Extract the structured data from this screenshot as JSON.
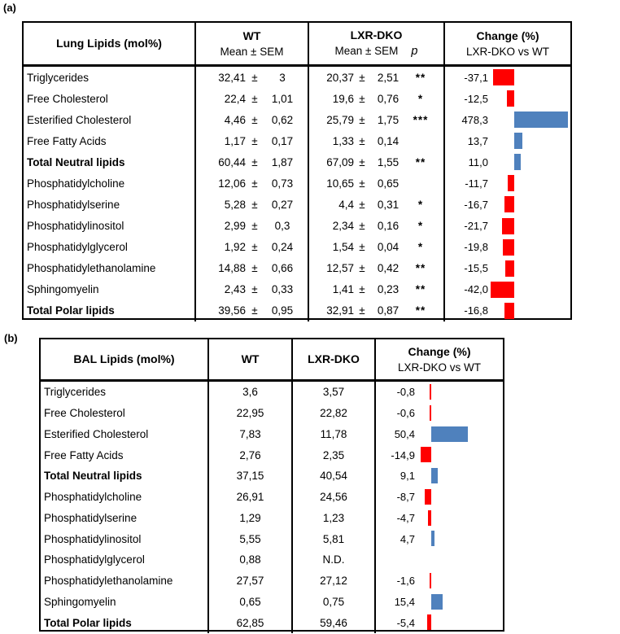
{
  "colors": {
    "negative_bar": "#ff0000",
    "positive_bar": "#4f81bd",
    "border": "#000000"
  },
  "panel_a": {
    "label": "(a)",
    "header": {
      "col1": "Lung Lipids (mol%)",
      "wt_title": "WT",
      "wt_sub": "Mean ± SEM",
      "dko_title": "LXR-DKO",
      "dko_sub": "Mean ± SEM",
      "p_label": "p",
      "change_title": "Change (%)",
      "change_sub": "LXR-DKO vs WT"
    },
    "rows": [
      {
        "lipid": "Triglycerides",
        "bold": false,
        "wt_mean": "32,41",
        "wt_sem": "3",
        "dko_mean": "20,37",
        "dko_sem": "2,51",
        "p": "**",
        "change_label": "-37,1",
        "change": -37.1
      },
      {
        "lipid": "Free Cholesterol",
        "bold": false,
        "wt_mean": "22,4",
        "wt_sem": "1,01",
        "dko_mean": "19,6",
        "dko_sem": "0,76",
        "p": "*",
        "change_label": "-12,5",
        "change": -12.5
      },
      {
        "lipid": "Esterified Cholesterol",
        "bold": false,
        "wt_mean": "4,46",
        "wt_sem": "0,62",
        "dko_mean": "25,79",
        "dko_sem": "1,75",
        "p": "***",
        "change_label": "478,3",
        "change": 478.3
      },
      {
        "lipid": "Free  Fatty Acids",
        "bold": false,
        "wt_mean": "1,17",
        "wt_sem": "0,17",
        "dko_mean": "1,33",
        "dko_sem": "0,14",
        "p": "",
        "change_label": "13,7",
        "change": 13.7
      },
      {
        "lipid": "Total Neutral lipids",
        "bold": true,
        "wt_mean": "60,44",
        "wt_sem": "1,87",
        "dko_mean": "67,09",
        "dko_sem": "1,55",
        "p": "**",
        "change_label": "11,0",
        "change": 11.0
      },
      {
        "lipid": "Phosphatidylcholine",
        "bold": false,
        "wt_mean": "12,06",
        "wt_sem": "0,73",
        "dko_mean": "10,65",
        "dko_sem": "0,65",
        "p": "",
        "change_label": "-11,7",
        "change": -11.7
      },
      {
        "lipid": "Phosphatidylserine",
        "bold": false,
        "wt_mean": "5,28",
        "wt_sem": "0,27",
        "dko_mean": "4,4",
        "dko_sem": "0,31",
        "p": "*",
        "change_label": "-16,7",
        "change": -16.7
      },
      {
        "lipid": "Phosphatidylinositol",
        "bold": false,
        "wt_mean": "2,99",
        "wt_sem": "0,3",
        "dko_mean": "2,34",
        "dko_sem": "0,16",
        "p": "*",
        "change_label": "-21,7",
        "change": -21.7
      },
      {
        "lipid": "Phosphatidylglycerol",
        "bold": false,
        "wt_mean": "1,92",
        "wt_sem": "0,24",
        "dko_mean": "1,54",
        "dko_sem": "0,04",
        "p": "*",
        "change_label": "-19,8",
        "change": -19.8
      },
      {
        "lipid": "Phosphatidylethanolamine",
        "bold": false,
        "wt_mean": "14,88",
        "wt_sem": "0,66",
        "dko_mean": "12,57",
        "dko_sem": "0,42",
        "p": "**",
        "change_label": "-15,5",
        "change": -15.5
      },
      {
        "lipid": "Sphingomyelin",
        "bold": false,
        "wt_mean": "2,43",
        "wt_sem": "0,33",
        "dko_mean": "1,41",
        "dko_sem": "0,23",
        "p": "**",
        "change_label": "-42,0",
        "change": -42.0
      },
      {
        "lipid": "Total Polar lipids",
        "bold": true,
        "wt_mean": "39,56",
        "wt_sem": "0,95",
        "dko_mean": "32,91",
        "dko_sem": "0,87",
        "p": "**",
        "change_label": "-16,8",
        "change": -16.8
      }
    ]
  },
  "panel_b": {
    "label": "(b)",
    "header": {
      "col1": "BAL Lipids (mol%)",
      "wt_title": "WT",
      "dko_title": "LXR-DKO",
      "change_title": "Change (%)",
      "change_sub": "LXR-DKO vs WT"
    },
    "rows": [
      {
        "lipid": "Triglycerides",
        "bold": false,
        "wt": "3,6",
        "dko": "3,57",
        "change_label": "-0,8",
        "change": -0.8
      },
      {
        "lipid": "Free Cholesterol",
        "bold": false,
        "wt": "22,95",
        "dko": "22,82",
        "change_label": "-0,6",
        "change": -0.6
      },
      {
        "lipid": "Esterified Cholesterol",
        "bold": false,
        "wt": "7,83",
        "dko": "11,78",
        "change_label": "50,4",
        "change": 50.4
      },
      {
        "lipid": "Free  Fatty Acids",
        "bold": false,
        "wt": "2,76",
        "dko": "2,35",
        "change_label": "-14,9",
        "change": -14.9
      },
      {
        "lipid": "Total Neutral lipids",
        "bold": true,
        "wt": "37,15",
        "dko": "40,54",
        "change_label": "9,1",
        "change": 9.1
      },
      {
        "lipid": "Phosphatidylcholine",
        "bold": false,
        "wt": "26,91",
        "dko": "24,56",
        "change_label": "-8,7",
        "change": -8.7
      },
      {
        "lipid": "Phosphatidylserine",
        "bold": false,
        "wt": "1,29",
        "dko": "1,23",
        "change_label": "-4,7",
        "change": -4.7
      },
      {
        "lipid": "Phosphatidylinositol",
        "bold": false,
        "wt": "5,55",
        "dko": "5,81",
        "change_label": "4,7",
        "change": 4.7
      },
      {
        "lipid": "Phosphatidylglycerol",
        "bold": false,
        "wt": "0,88",
        "dko": "N.D.",
        "change_label": "",
        "change": null
      },
      {
        "lipid": "Phosphatidylethanolamine",
        "bold": false,
        "wt": "27,57",
        "dko": "27,12",
        "change_label": "-1,6",
        "change": -1.6
      },
      {
        "lipid": "Sphingomyelin",
        "bold": false,
        "wt": "0,65",
        "dko": "0,75",
        "change_label": "15,4",
        "change": 15.4
      },
      {
        "lipid": "Total Polar lipids",
        "bold": true,
        "wt": "62,85",
        "dko": "59,46",
        "change_label": "-5,4",
        "change": -5.4
      }
    ]
  },
  "chart_data": [
    {
      "type": "table",
      "title": "Lung Lipids (mol%) — WT vs LXR-DKO with Change (%) data bars",
      "columns": [
        "Lung Lipids (mol%)",
        "WT Mean",
        "WT SEM",
        "LXR-DKO Mean",
        "LXR-DKO SEM",
        "p",
        "Change (%) LXR-DKO vs WT"
      ],
      "categories": [
        "Triglycerides",
        "Free Cholesterol",
        "Esterified Cholesterol",
        "Free Fatty Acids",
        "Total Neutral lipids",
        "Phosphatidylcholine",
        "Phosphatidylserine",
        "Phosphatidylinositol",
        "Phosphatidylglycerol",
        "Phosphatidylethanolamine",
        "Sphingomyelin",
        "Total Polar lipids"
      ],
      "series": [
        {
          "name": "WT Mean",
          "values": [
            32.41,
            22.4,
            4.46,
            1.17,
            60.44,
            12.06,
            5.28,
            2.99,
            1.92,
            14.88,
            2.43,
            39.56
          ]
        },
        {
          "name": "WT SEM",
          "values": [
            3,
            1.01,
            0.62,
            0.17,
            1.87,
            0.73,
            0.27,
            0.3,
            0.24,
            0.66,
            0.33,
            0.95
          ]
        },
        {
          "name": "LXR-DKO Mean",
          "values": [
            20.37,
            19.6,
            25.79,
            1.33,
            67.09,
            10.65,
            4.4,
            2.34,
            1.54,
            12.57,
            1.41,
            32.91
          ]
        },
        {
          "name": "LXR-DKO SEM",
          "values": [
            2.51,
            0.76,
            1.75,
            0.14,
            1.55,
            0.65,
            0.31,
            0.16,
            0.04,
            0.42,
            0.23,
            0.87
          ]
        },
        {
          "name": "Change (%)",
          "values": [
            -37.1,
            -12.5,
            478.3,
            13.7,
            11.0,
            -11.7,
            -16.7,
            -21.7,
            -19.8,
            -15.5,
            -42.0,
            -16.8
          ]
        }
      ],
      "significance": [
        "**",
        "*",
        "***",
        "",
        "**",
        "",
        "*",
        "*",
        "*",
        "**",
        "**",
        "**"
      ],
      "bar_style": {
        "type": "bar",
        "orientation": "horizontal",
        "positive_color": "#4f81bd",
        "negative_color": "#ff0000",
        "note": "478.3 bar clipped at table edge"
      }
    },
    {
      "type": "table",
      "title": "BAL Lipids (mol%) — WT vs LXR-DKO with Change (%) data bars",
      "columns": [
        "BAL Lipids (mol%)",
        "WT",
        "LXR-DKO",
        "Change (%) LXR-DKO vs WT"
      ],
      "categories": [
        "Triglycerides",
        "Free Cholesterol",
        "Esterified Cholesterol",
        "Free Fatty Acids",
        "Total Neutral lipids",
        "Phosphatidylcholine",
        "Phosphatidylserine",
        "Phosphatidylinositol",
        "Phosphatidylglycerol",
        "Phosphatidylethanolamine",
        "Sphingomyelin",
        "Total Polar lipids"
      ],
      "series": [
        {
          "name": "WT",
          "values": [
            3.6,
            22.95,
            7.83,
            2.76,
            37.15,
            26.91,
            1.29,
            5.55,
            0.88,
            27.57,
            0.65,
            62.85
          ]
        },
        {
          "name": "LXR-DKO",
          "values": [
            3.57,
            22.82,
            11.78,
            2.35,
            40.54,
            24.56,
            1.23,
            5.81,
            null,
            27.12,
            0.75,
            59.46
          ]
        },
        {
          "name": "Change (%)",
          "values": [
            -0.8,
            -0.6,
            50.4,
            -14.9,
            9.1,
            -8.7,
            -4.7,
            4.7,
            null,
            -1.6,
            15.4,
            -5.4
          ]
        }
      ],
      "nd_label": "N.D.",
      "bar_style": {
        "type": "bar",
        "orientation": "horizontal",
        "positive_color": "#4f81bd",
        "negative_color": "#ff0000"
      }
    }
  ]
}
